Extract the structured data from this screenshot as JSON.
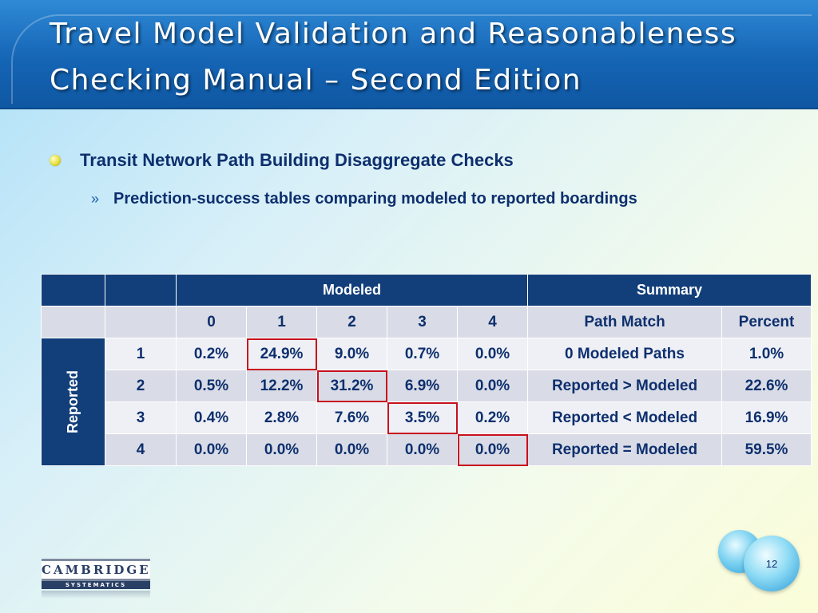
{
  "slide": {
    "title_line1": "Travel Model Validation and Reasonableness",
    "title_line2": "Checking Manual – Second Edition",
    "bullet1": "Transit Network Path Building Disaggregate Checks",
    "bullet2_marker": "»",
    "bullet2": "Prediction-success tables comparing modeled to reported boardings",
    "page_number": "12"
  },
  "table": {
    "header_modeled": "Modeled",
    "header_summary": "Summary",
    "row_axis_label": "Reported",
    "modeled_cols": [
      "0",
      "1",
      "2",
      "3",
      "4"
    ],
    "summary_headers": [
      "Path Match",
      "Percent"
    ],
    "rows": [
      {
        "reported": "1",
        "values": [
          "0.2%",
          "24.9%",
          "9.0%",
          "0.7%",
          "0.0%"
        ],
        "summary_label": "0 Modeled Paths",
        "summary_pct": "1.0%"
      },
      {
        "reported": "2",
        "values": [
          "0.5%",
          "12.2%",
          "31.2%",
          "6.9%",
          "0.0%"
        ],
        "summary_label": "Reported > Modeled",
        "summary_pct": "22.6%"
      },
      {
        "reported": "3",
        "values": [
          "0.4%",
          "2.8%",
          "7.6%",
          "3.5%",
          "0.2%"
        ],
        "summary_label": "Reported < Modeled",
        "summary_pct": "16.9%"
      },
      {
        "reported": "4",
        "values": [
          "0.0%",
          "0.0%",
          "0.0%",
          "0.0%",
          "0.0%"
        ],
        "summary_label": "Reported = Modeled",
        "summary_pct": "59.5%"
      }
    ],
    "highlight_color": "#c8101e"
  },
  "logo": {
    "line1": "CAMBRIDGE",
    "line2": "SYSTEMATICS"
  }
}
